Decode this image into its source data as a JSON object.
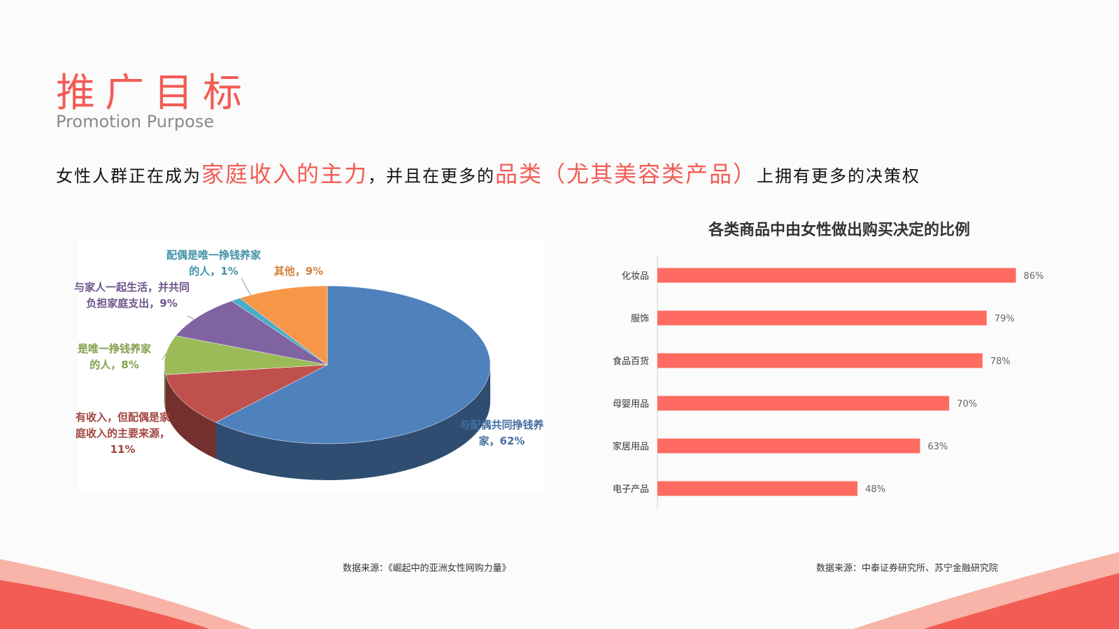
{
  "header": {
    "title": "推广目标",
    "subtitle": "Promotion Purpose"
  },
  "headline": [
    "女性人群正在成为",
    "家庭收入的主力",
    "，并且在更多的",
    "品类（尤其美容类产品）",
    "上拥有更多的决策权"
  ],
  "chart_data": [
    {
      "type": "pie",
      "categories": [
        "与配偶共同挣钱养家，",
        "有收入，但配偶是家庭收入的主要来源，",
        "是唯一挣钱养家的人，",
        "与家人一起生活，并共同负担家庭支出，",
        "配偶是唯一挣钱养家的人，",
        "其他，"
      ],
      "values": [
        62,
        11,
        8,
        9,
        1,
        9
      ],
      "value_labels": [
        "62%",
        "11%",
        "8%",
        "9%",
        "1%",
        "9%"
      ],
      "colors": [
        "#4f81bd",
        "#c0504d",
        "#9bbb59",
        "#8064a2",
        "#4bacc6",
        "#f79646"
      ],
      "source": "数据来源：《崛起中的亚洲女性网购力量》"
    },
    {
      "type": "hbar",
      "title": "各类商品中由女性做出购买决定的比例",
      "categories": [
        "化妆品",
        "服饰",
        "食品百货",
        "母婴用品",
        "家居用品",
        "电子产品"
      ],
      "values": [
        86,
        79,
        78,
        70,
        63,
        48
      ],
      "value_labels": [
        "86%",
        "79%",
        "78%",
        "70%",
        "63%",
        "48%"
      ],
      "color": "#ff6b61",
      "xlim": [
        0,
        100
      ],
      "source": "数据来源：中泰证券研究所、苏宁金融研究院"
    }
  ]
}
